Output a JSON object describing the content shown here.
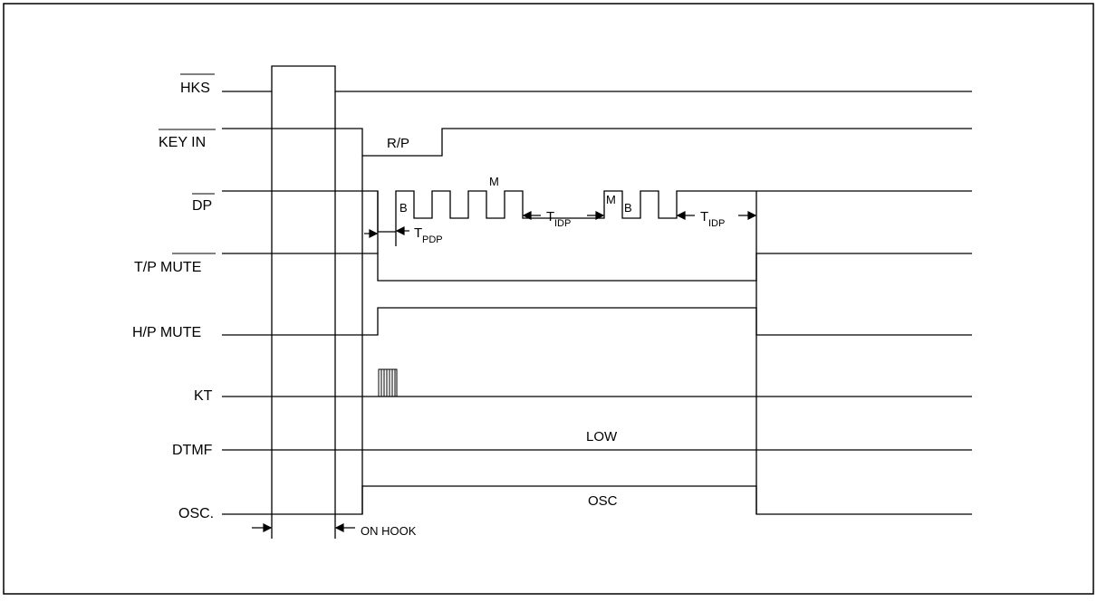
{
  "signals": [
    {
      "id": "hks",
      "label": "HKS",
      "overbar": "HKS"
    },
    {
      "id": "keyin",
      "label": "KEY IN",
      "overbar": "KEY IN"
    },
    {
      "id": "dp",
      "label": "DP",
      "overbar": "DP"
    },
    {
      "id": "tpmute",
      "label_prefix": "T/P ",
      "label": "MUTE",
      "overbar": "MUTE"
    },
    {
      "id": "hpmute",
      "label": "H/P MUTE"
    },
    {
      "id": "kt",
      "label": "KT"
    },
    {
      "id": "dtmf",
      "label": "DTMF"
    },
    {
      "id": "osc",
      "label": "OSC."
    }
  ],
  "annotations": {
    "rp": "R/P",
    "b1": "B",
    "m1": "M",
    "m2": "M",
    "b2": "B",
    "t": "T",
    "pdp_sub": "PDP",
    "idp_sub": "IDP",
    "low": "LOW",
    "osc": "OSC",
    "on_hook": "ON HOOK"
  }
}
